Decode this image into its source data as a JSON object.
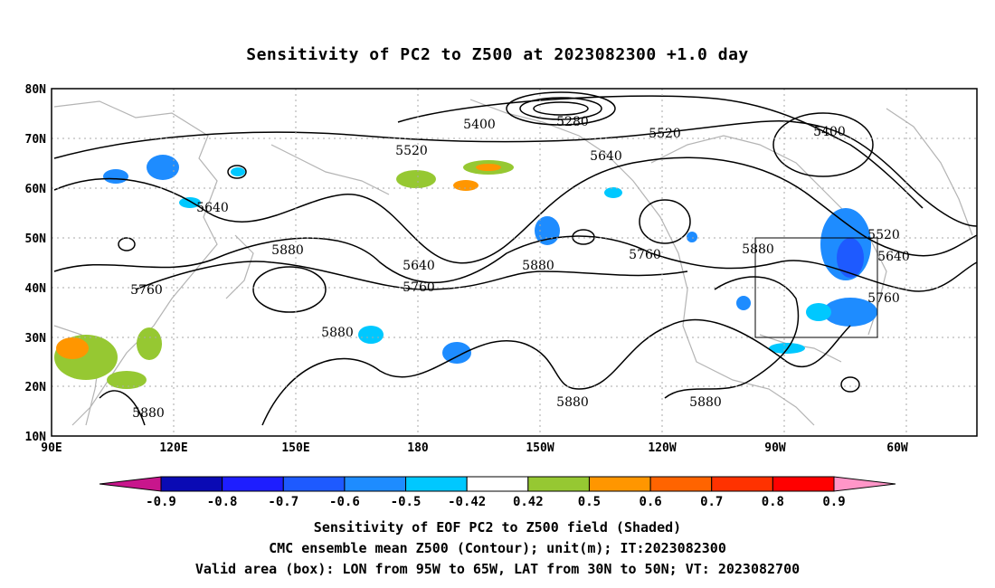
{
  "title": "Sensitivity of PC2 to Z500 at 2023082300 +1.0 day",
  "lat_labels": [
    "80N",
    "70N",
    "60N",
    "50N",
    "40N",
    "30N",
    "20N",
    "10N"
  ],
  "lon_labels": [
    "90E",
    "120E",
    "150E",
    "180",
    "150W",
    "120W",
    "90W",
    "60W"
  ],
  "contour_labels": [
    "5280",
    "5400",
    "5520",
    "5520",
    "5400",
    "5640",
    "5640",
    "5880",
    "5640",
    "5760",
    "5880",
    "5760",
    "5880",
    "5760",
    "5880",
    "5520",
    "5640",
    "5760",
    "5880",
    "5880",
    "5880"
  ],
  "colorbar": {
    "labels": [
      "-0.9",
      "-0.8",
      "-0.7",
      "-0.6",
      "-0.5",
      "-0.42",
      "0.42",
      "0.5",
      "0.6",
      "0.7",
      "0.8",
      "0.9"
    ],
    "colors": [
      "#c8168c",
      "#0a0ab4",
      "#1e1eff",
      "#1e5aff",
      "#1e8cff",
      "#00c8ff",
      "#ffffff",
      "#96c832",
      "#ff9600",
      "#ff6400",
      "#ff3200",
      "#ff0000",
      "#ff96c8"
    ]
  },
  "box": {
    "lon_west": "95W",
    "lon_east": "65W",
    "lat_south": "30N",
    "lat_north": "50N"
  },
  "captions": [
    "Sensitivity of EOF PC2 to Z500 field (Shaded)",
    "CMC ensemble mean Z500 (Contour); unit(m); IT:2023082300",
    "Valid area (box): LON from 95W to 65W, LAT from 30N to 50N; VT: 2023082700"
  ]
}
